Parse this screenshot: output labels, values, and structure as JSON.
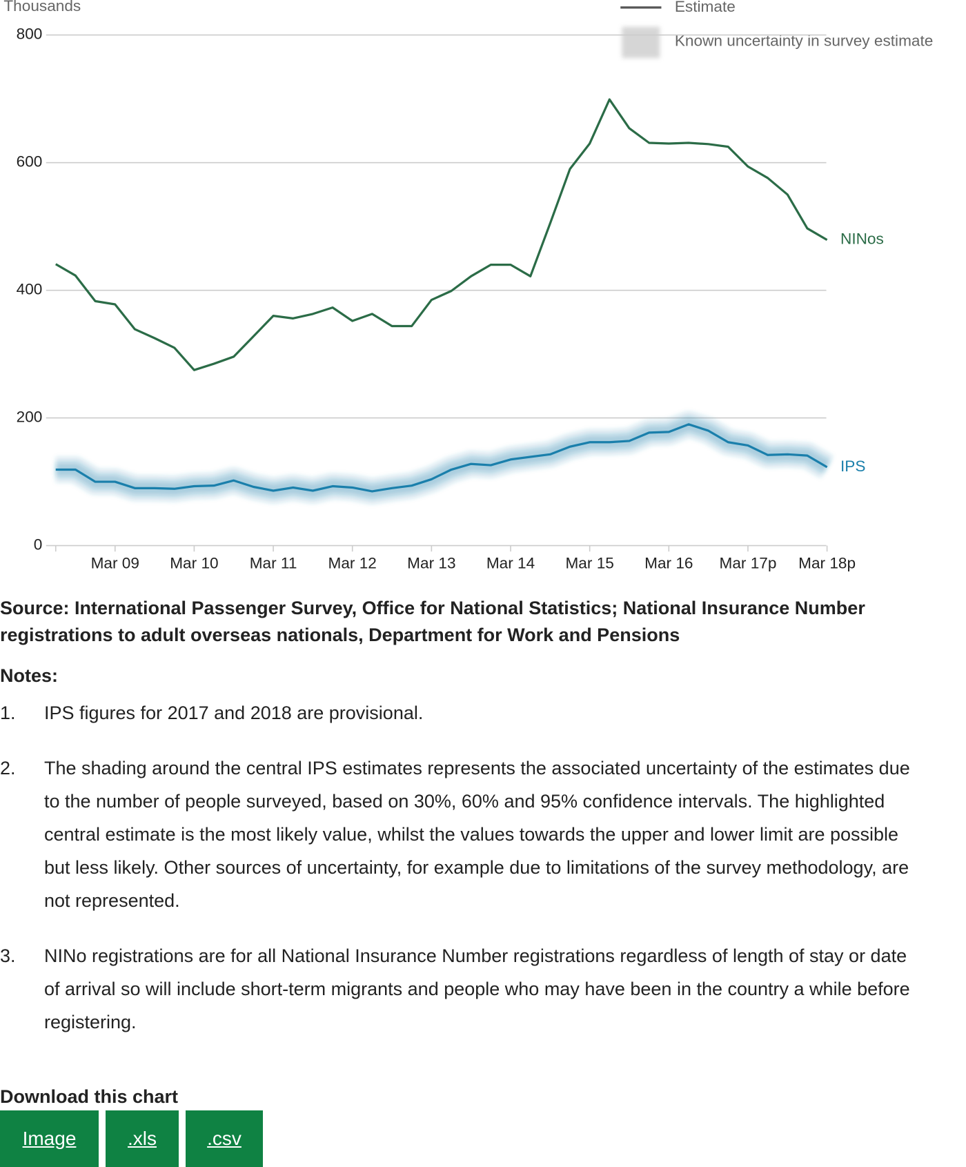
{
  "chart_data": {
    "type": "line",
    "y_label": "Thousands",
    "legend": [
      "Estimate",
      "Known uncertainty in survey estimate"
    ],
    "categories": [
      null,
      null,
      null,
      "Mar 09",
      null,
      null,
      null,
      "Mar 10",
      null,
      null,
      null,
      "Mar 11",
      null,
      null,
      null,
      "Mar 12",
      null,
      null,
      null,
      "Mar 13",
      null,
      null,
      null,
      "Mar 14",
      null,
      null,
      null,
      "Mar 15",
      null,
      null,
      null,
      "Mar 16",
      null,
      null,
      null,
      "Mar 17p",
      null,
      null,
      null,
      "Mar 18p"
    ],
    "series": [
      {
        "name": "NINos",
        "color": "#2b6c47",
        "values": [
          441,
          423,
          383,
          378,
          339,
          325,
          310,
          275,
          285,
          296,
          328,
          360,
          356,
          363,
          373,
          352,
          363,
          344,
          344,
          385,
          399,
          422,
          440,
          440,
          422,
          505,
          590,
          630,
          699,
          654,
          631,
          630,
          631,
          629,
          625,
          594,
          576,
          550,
          497,
          479
        ]
      },
      {
        "name": "IPS",
        "color": "#1a7fab",
        "uncertainty": true,
        "values": [
          119,
          119,
          100,
          100,
          90,
          90,
          89,
          93,
          94,
          102,
          92,
          86,
          91,
          86,
          93,
          91,
          85,
          90,
          94,
          104,
          119,
          128,
          126,
          135,
          139,
          143,
          155,
          162,
          162,
          164,
          177,
          178,
          190,
          180,
          162,
          157,
          142,
          143,
          141,
          123
        ]
      }
    ],
    "ylim": [
      0,
      800
    ],
    "yticks": [
      0,
      200,
      400,
      600,
      800
    ],
    "grid": true
  },
  "source": "Source: International Passenger Survey, Office for National Statistics; National Insurance Number registrations to adult overseas nationals, Department for Work and Pensions",
  "notes": {
    "heading": "Notes:",
    "items": [
      {
        "number": "1.",
        "text": "IPS figures for 2017 and 2018 are provisional."
      },
      {
        "number": "2.",
        "text": "The shading around the central IPS estimates represents the associated uncertainty of the estimates due to the number of people surveyed, based on 30%, 60% and 95% confidence intervals. The highlighted central estimate is the most likely value, whilst the values towards the upper and lower limit are possible but less likely. Other sources of uncertainty, for example due to limitations of the survey methodology, are not represented."
      },
      {
        "number": "3.",
        "text": "NINo registrations are for all National Insurance Number registrations regardless of length of stay or date of arrival so will include short-term migrants and people who may have been in the country a while before registering."
      }
    ]
  },
  "download": {
    "heading": "Download this chart",
    "buttons": [
      "Image",
      ".xls",
      ".csv"
    ]
  }
}
